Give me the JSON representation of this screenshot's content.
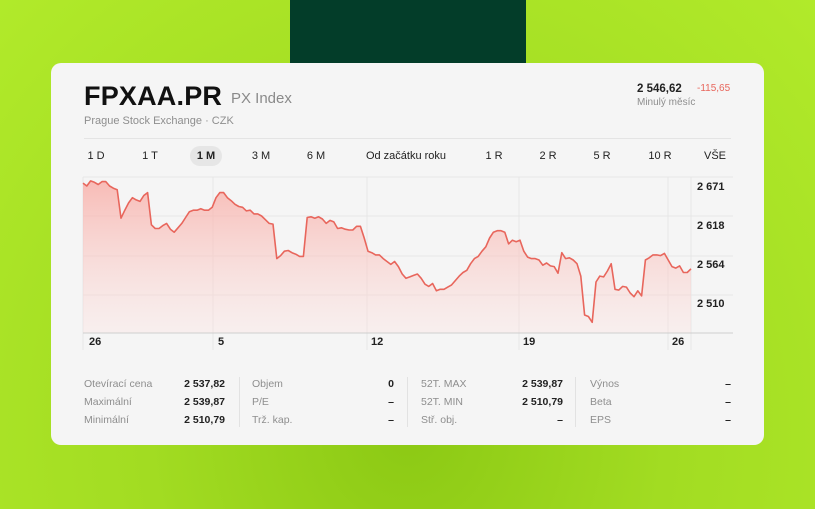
{
  "header": {
    "ticker": "FPXAA.PR",
    "index_name": "PX Index",
    "exchange": "Prague Stock Exchange · CZK",
    "price": "2 546,62",
    "change": "-115,65",
    "period_label": "Minulý měsíc"
  },
  "colors": {
    "background": "#a2dc22",
    "dark_block": "#033d29",
    "card": "#f5f5f5",
    "line": "#e8665c",
    "negative": "#e8665c"
  },
  "ranges": [
    {
      "label": "1 D",
      "active": false
    },
    {
      "label": "1 T",
      "active": false
    },
    {
      "label": "1 M",
      "active": true
    },
    {
      "label": "3 M",
      "active": false
    },
    {
      "label": "6 M",
      "active": false
    },
    {
      "label": "Od začátku roku",
      "active": false
    },
    {
      "label": "1 R",
      "active": false
    },
    {
      "label": "2 R",
      "active": false
    },
    {
      "label": "5 R",
      "active": false
    },
    {
      "label": "10 R",
      "active": false
    },
    {
      "label": "VŠE",
      "active": false
    }
  ],
  "chart_data": {
    "type": "area",
    "title": "FPXAA.PR",
    "xlabel": "",
    "ylabel": "",
    "x_ticks": [
      "26",
      "5",
      "12",
      "19",
      "26"
    ],
    "y_ticks": [
      "2 671",
      "2 618",
      "2 564",
      "2 510"
    ],
    "ylim": [
      2462,
      2690
    ],
    "grid": true,
    "series": [
      {
        "name": "PX Index",
        "values": [
          2675,
          2671,
          2678,
          2676,
          2673,
          2677,
          2677,
          2671,
          2668,
          2666,
          2627,
          2638,
          2648,
          2655,
          2652,
          2650,
          2658,
          2662,
          2618,
          2613,
          2613,
          2617,
          2620,
          2612,
          2608,
          2614,
          2620,
          2628,
          2636,
          2638,
          2638,
          2640,
          2638,
          2638,
          2642,
          2655,
          2662,
          2662,
          2655,
          2651,
          2646,
          2643,
          2642,
          2637,
          2638,
          2633,
          2633,
          2630,
          2625,
          2620,
          2619,
          2572,
          2576,
          2582,
          2583,
          2580,
          2578,
          2575,
          2575,
          2628,
          2629,
          2627,
          2629,
          2626,
          2620,
          2624,
          2622,
          2613,
          2614,
          2612,
          2611,
          2611,
          2616,
          2616,
          2600,
          2582,
          2580,
          2577,
          2577,
          2572,
          2568,
          2564,
          2568,
          2561,
          2551,
          2545,
          2547,
          2549,
          2551,
          2545,
          2537,
          2534,
          2538,
          2528,
          2530,
          2530,
          2533,
          2536,
          2542,
          2548,
          2553,
          2556,
          2565,
          2572,
          2575,
          2582,
          2588,
          2600,
          2608,
          2610,
          2610,
          2608,
          2592,
          2597,
          2595,
          2597,
          2582,
          2574,
          2572,
          2572,
          2570,
          2563,
          2566,
          2562,
          2561,
          2552,
          2580,
          2572,
          2573,
          2570,
          2565,
          2548,
          2495,
          2493,
          2485,
          2540,
          2548,
          2547,
          2555,
          2565,
          2530,
          2529,
          2534,
          2533,
          2525,
          2520,
          2528,
          2521,
          2570,
          2573,
          2577,
          2577,
          2576,
          2579,
          2570,
          2561,
          2559,
          2562,
          2553,
          2553,
          2558
        ]
      }
    ]
  },
  "stats": {
    "col1": [
      {
        "label": "Otevírací cena",
        "value": "2 537,82"
      },
      {
        "label": "Maximální",
        "value": "2 539,87"
      },
      {
        "label": "Minimální",
        "value": "2 510,79"
      }
    ],
    "col2": [
      {
        "label": "Objem",
        "value": "0"
      },
      {
        "label": "P/E",
        "value": "–"
      },
      {
        "label": "Trž. kap.",
        "value": "–"
      }
    ],
    "col3": [
      {
        "label": "52T. MAX",
        "value": "2 539,87"
      },
      {
        "label": "52T. MIN",
        "value": "2 510,79"
      },
      {
        "label": "Stř. obj.",
        "value": "–"
      }
    ],
    "col4": [
      {
        "label": "Výnos",
        "value": "–"
      },
      {
        "label": "Beta",
        "value": "–"
      },
      {
        "label": "EPS",
        "value": "–"
      }
    ]
  }
}
